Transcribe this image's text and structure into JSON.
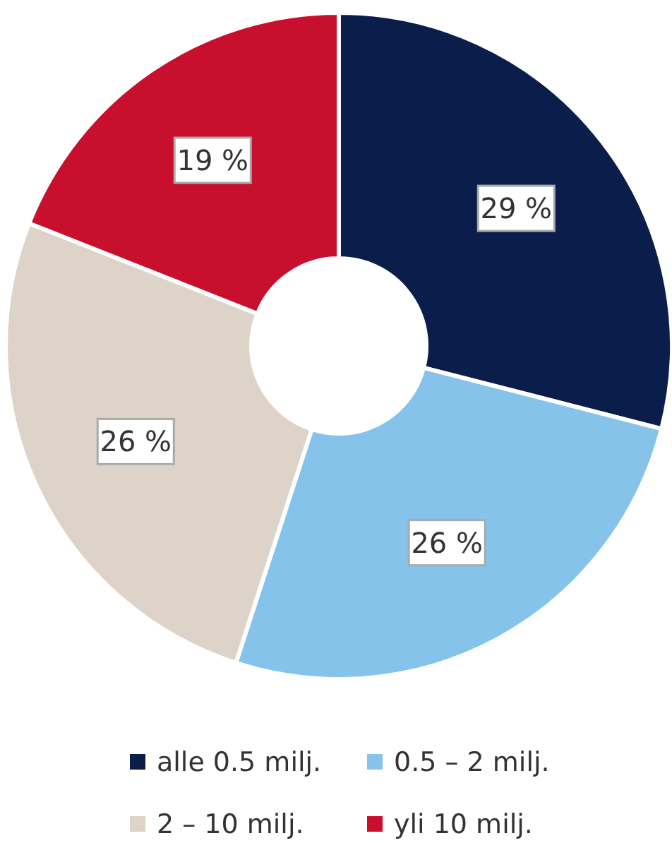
{
  "chart_data": {
    "type": "donut",
    "categories": [
      "alle 0.5 milj.",
      "0.5 – 2 milj.",
      "2 – 10 milj.",
      "yli 10 milj."
    ],
    "values": [
      29,
      26,
      26,
      19
    ],
    "colors": [
      "#0b1d4a",
      "#85c3ea",
      "#ddd3c8",
      "#c8102e"
    ],
    "value_labels": [
      "29 %",
      "26 %",
      "26 %",
      "19 %"
    ],
    "legend": "bottom"
  }
}
